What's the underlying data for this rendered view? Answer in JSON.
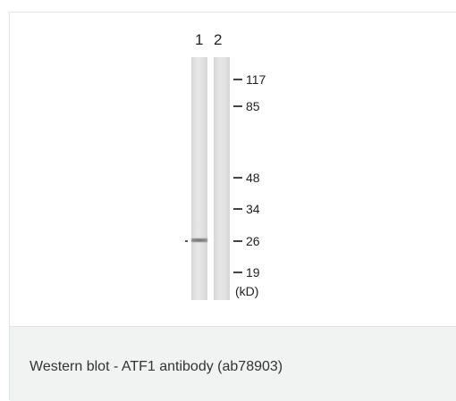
{
  "blot": {
    "lane_numbers": [
      "1",
      "2"
    ],
    "markers": [
      "117",
      "85",
      "48",
      "34",
      "26",
      "19"
    ],
    "unit": "(kD)"
  },
  "caption": "Western blot - ATF1 antibody (ab78903)",
  "colors": {
    "caption_background": "#f1f2f2",
    "border": "#e3e3e3",
    "text": "#333333"
  }
}
